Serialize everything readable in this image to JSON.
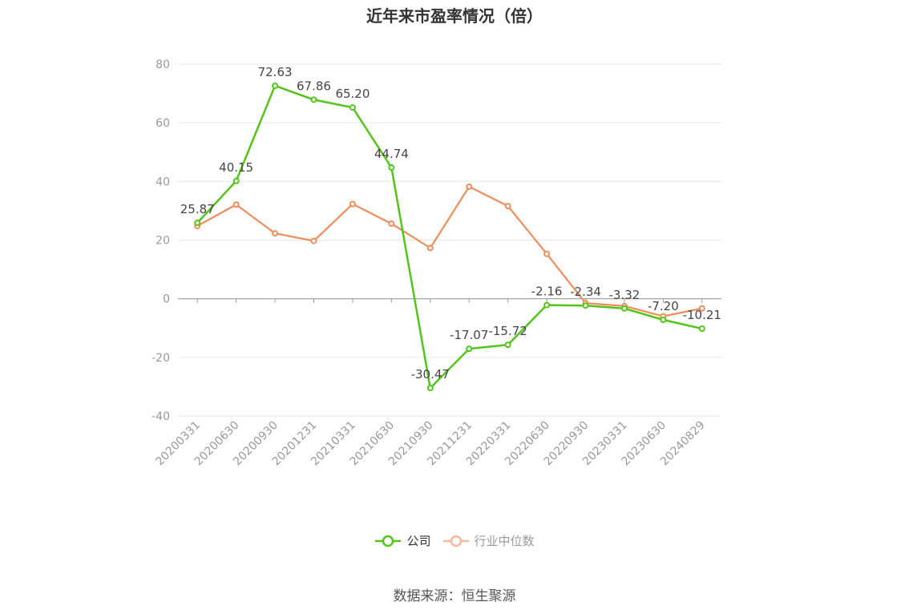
{
  "chart_data": {
    "type": "line",
    "title": "近年来市盈率情况（倍）",
    "categories": [
      "20200331",
      "20200630",
      "20200930",
      "20201231",
      "20210331",
      "20210630",
      "20210930",
      "20211231",
      "20220331",
      "20220630",
      "20220930",
      "20230331",
      "20230630",
      "20240829"
    ],
    "series": [
      {
        "name": "公司",
        "color": "#52c41a",
        "values": [
          25.87,
          40.15,
          72.63,
          67.86,
          65.2,
          44.74,
          -30.47,
          -17.07,
          -15.72,
          -2.16,
          -2.34,
          -3.32,
          -7.2,
          -10.21
        ],
        "labels": [
          "25.87",
          "40.15",
          "72.63",
          "67.86",
          "65.20",
          "44.74",
          "-30.47",
          "-17.07",
          "-15.72",
          "-2.16",
          "-2.34",
          "-3.32",
          "-7.20",
          "-10.21"
        ]
      },
      {
        "name": "行业中位数",
        "color": "#f08c5a",
        "values": [
          24.8,
          32.1,
          22.3,
          19.7,
          32.3,
          25.6,
          17.3,
          38.2,
          31.6,
          15.3,
          -1.5,
          -2.5,
          -6.0,
          -3.3
        ]
      }
    ],
    "y_ticks": [
      "80",
      "60",
      "40",
      "20",
      "0",
      "-20",
      "-40"
    ],
    "ylim": [
      -40,
      80
    ],
    "grid": true,
    "legend_position": "bottom-center"
  },
  "legend": {
    "company": "公司",
    "industry": "行业中位数"
  },
  "source": "数据来源：恒生聚源"
}
